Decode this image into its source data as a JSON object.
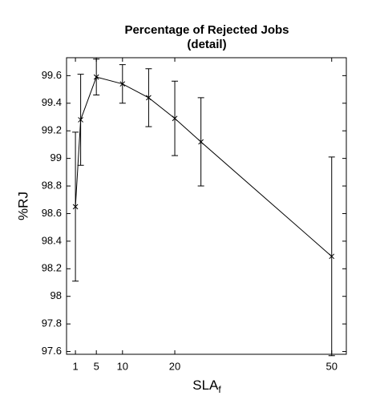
{
  "chart_data": {
    "type": "line",
    "title": "Percentage of Rejected Jobs",
    "subtitle": "(detail)",
    "xlabel": "SLA",
    "xlabel_sub": "f",
    "ylabel": "%RJ",
    "x": [
      1,
      2,
      5,
      10,
      15,
      20,
      25,
      50
    ],
    "series": [
      {
        "values": [
          98.65,
          99.28,
          99.59,
          99.54,
          99.44,
          99.29,
          99.12,
          98.29
        ],
        "errors": [
          0.54,
          0.33,
          0.13,
          0.14,
          0.21,
          0.27,
          0.32,
          0.72
        ],
        "color": "#000000"
      }
    ],
    "xlim": [
      -0.7,
      52.8
    ],
    "xticks": [
      1,
      5,
      10,
      20,
      50
    ],
    "ylim": [
      97.58,
      99.73
    ],
    "yticks": [
      97.6,
      97.8,
      98,
      98.2,
      98.4,
      98.6,
      98.8,
      99,
      99.2,
      99.4,
      99.6
    ]
  }
}
